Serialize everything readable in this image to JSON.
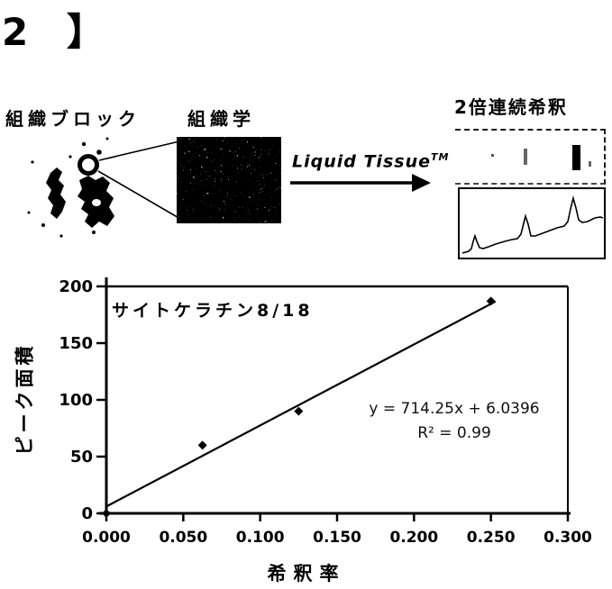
{
  "figure_label": "2 】",
  "workflow": {
    "tissue_block_label": "組織ブロック",
    "histology_label": "組織学",
    "process_label": "Liquid Tissue",
    "process_label_superscript": "TM",
    "dilution_label": "2倍連続希釈"
  },
  "chart_data": {
    "type": "scatter",
    "title": "サイトケラチン8/18",
    "xlabel": "希釈率",
    "ylabel": "ピーク面積",
    "xlim": [
      0.0,
      0.3
    ],
    "ylim": [
      0,
      200
    ],
    "x_ticks": [
      "0.000",
      "0.050",
      "0.100",
      "0.150",
      "0.200",
      "0.250",
      "0.300"
    ],
    "y_ticks": [
      "0",
      "50",
      "100",
      "150",
      "200"
    ],
    "marker": "diamond",
    "grid": false,
    "legend": "none",
    "points": [
      {
        "x": 0.0,
        "y": 0
      },
      {
        "x": 0.0625,
        "y": 60
      },
      {
        "x": 0.125,
        "y": 90
      },
      {
        "x": 0.25,
        "y": 187
      }
    ],
    "trendline": {
      "slope": 714.25,
      "intercept": 6.0396,
      "r2": 0.99,
      "x_range": [
        0.0,
        0.253
      ],
      "equation_text": "y = 714.25x + 6.0396",
      "r_squared_text": "R² = 0.99"
    }
  }
}
